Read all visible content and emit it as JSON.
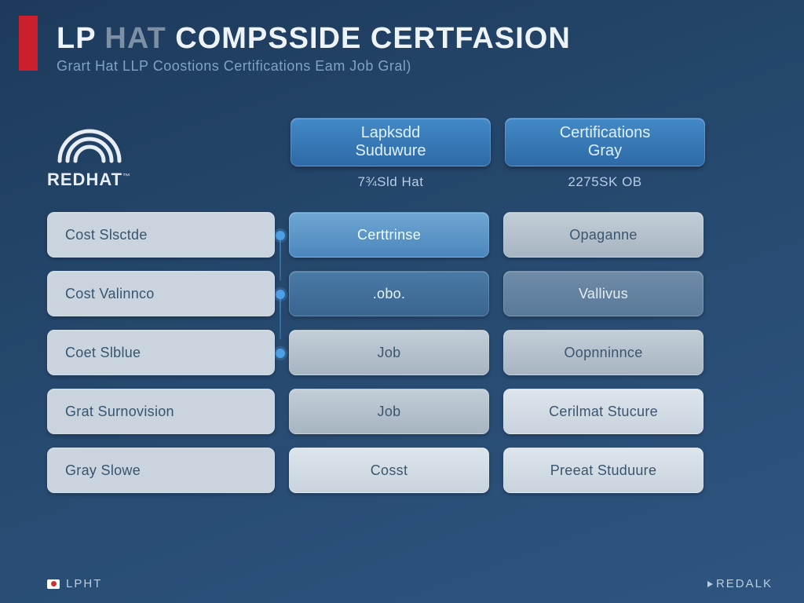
{
  "colors": {
    "bg_from": "#1d3a5c",
    "bg_to": "#2e5580",
    "red": "#cc1f2d",
    "accent": "#4ea0e6",
    "head_from": "#4389c8",
    "head_to": "#2d6aa6"
  },
  "header": {
    "title_leading": "LP",
    "title_faded": " HAT",
    "title_trailing": "  COMPSSIDE CERTFASION",
    "subtitle": "Grart Hat LLP Coostions Certifications Eam Job Gral)"
  },
  "logo": {
    "label": "REDHAT",
    "tm": "™"
  },
  "columns": {
    "left": {
      "line1": "Lapksdd",
      "line2": "Suduwure",
      "sub": "7¾Sld Hat"
    },
    "right": {
      "line1": "Certifications",
      "line2": "Gray",
      "sub": "2275SK OB"
    }
  },
  "rows": [
    {
      "label": "Cost Slsctde",
      "mid": "Certtrinse",
      "mid_tone": "tone-blue",
      "right": "Opaganne",
      "right_tone": "tone-grey"
    },
    {
      "label": "Cost Valinnco",
      "mid": ".obo.",
      "mid_tone": "tone-dblue",
      "right": "Vallivus",
      "right_tone": "tone-muted"
    },
    {
      "label": "Coet Slblue",
      "mid": "Job",
      "mid_tone": "tone-grey",
      "right": "Oopnninnce",
      "right_tone": "tone-grey"
    },
    {
      "label": "Grat Surnovision",
      "mid": "Job",
      "mid_tone": "tone-grey",
      "right": "Cerilmat Stucure",
      "right_tone": "tone-pale"
    },
    {
      "label": "Gray Slowe",
      "mid": "Cosst",
      "mid_tone": "tone-pale",
      "right": "Preeat Studuure",
      "right_tone": "tone-pale"
    }
  ],
  "footer": {
    "left": "LPHT",
    "right": "REDALK"
  }
}
